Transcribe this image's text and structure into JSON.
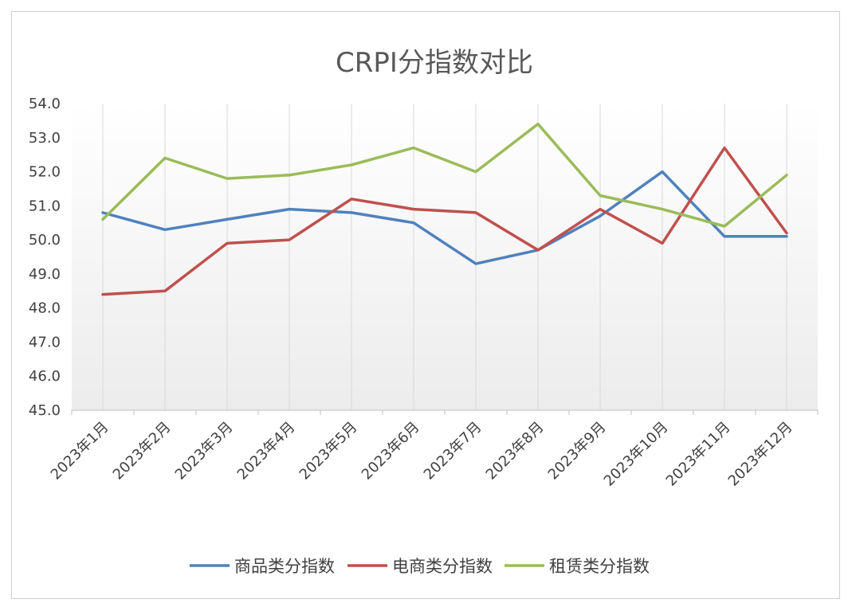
{
  "chart_data": {
    "type": "line",
    "title": "CRPI分指数对比",
    "categories": [
      "2023年1月",
      "2023年2月",
      "2023年3月",
      "2023年4月",
      "2023年5月",
      "2023年6月",
      "2023年7月",
      "2023年8月",
      "2023年9月",
      "2023年10月",
      "2023年11月",
      "2023年12月"
    ],
    "series": [
      {
        "name": "商品类分指数",
        "color": "#4f81bd",
        "values": [
          50.8,
          50.3,
          50.6,
          50.9,
          50.8,
          50.5,
          49.3,
          49.7,
          50.7,
          52.0,
          50.1,
          50.1
        ]
      },
      {
        "name": "电商类分指数",
        "color": "#c0504d",
        "values": [
          48.4,
          48.5,
          49.9,
          50.0,
          51.2,
          50.9,
          50.8,
          49.7,
          50.9,
          49.9,
          52.7,
          50.2
        ]
      },
      {
        "name": "租赁类分指数",
        "color": "#9bbb59",
        "values": [
          50.6,
          52.4,
          51.8,
          51.9,
          52.2,
          52.7,
          52.0,
          53.4,
          51.3,
          50.9,
          50.4,
          51.9
        ]
      }
    ],
    "ylim": [
      45.0,
      54.0
    ],
    "yticks": [
      "54.0",
      "53.0",
      "52.0",
      "51.0",
      "50.0",
      "49.0",
      "48.0",
      "47.0",
      "46.0",
      "45.0"
    ],
    "xlabel": "",
    "ylabel": "",
    "grid": "vertical",
    "legend": "bottom"
  }
}
